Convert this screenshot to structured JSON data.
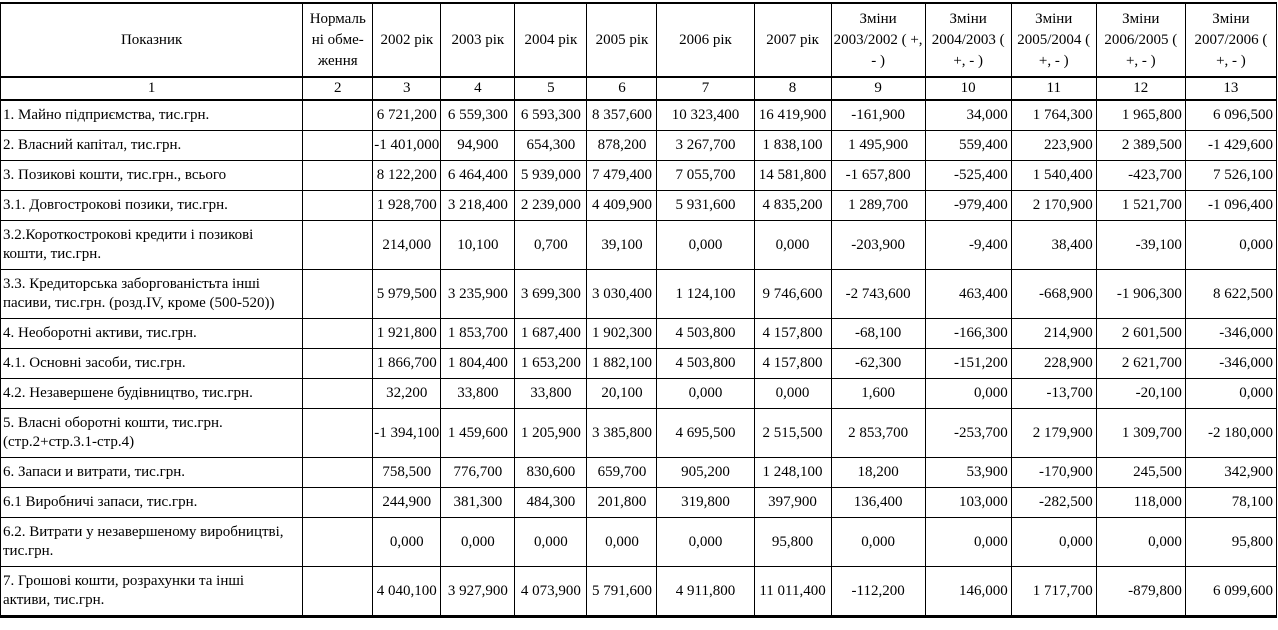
{
  "table": {
    "columns": [
      {
        "num": "1",
        "label": "Показник"
      },
      {
        "num": "2",
        "label": "Нормаль\nні обме-\nження"
      },
      {
        "num": "3",
        "label": "2002 рік"
      },
      {
        "num": "4",
        "label": "2003 рік"
      },
      {
        "num": "5",
        "label": "2004 рік"
      },
      {
        "num": "6",
        "label": "2005 рік"
      },
      {
        "num": "7",
        "label": "2006 рік"
      },
      {
        "num": "8",
        "label": "2007 рік"
      },
      {
        "num": "9",
        "label": "Зміни 2003/2002 ( +, - )"
      },
      {
        "num": "10",
        "label": "Зміни 2004/2003 ( +, - )"
      },
      {
        "num": "11",
        "label": "Зміни 2005/2004 ( +, - )"
      },
      {
        "num": "12",
        "label": "Зміни 2006/2005 ( +, - )"
      },
      {
        "num": "13",
        "label": "Зміни 2007/2006 ( +, - )"
      }
    ],
    "rows": [
      {
        "indicator": "1. Майно підприємства, тис.грн.",
        "norm": "",
        "values": [
          "6 721,200",
          "6 559,300",
          "6 593,300",
          "8 357,600",
          "10 323,400",
          "16 419,900",
          "-161,900",
          "34,000",
          "1 764,300",
          "1 965,800",
          "6 096,500"
        ]
      },
      {
        "indicator": "2. Власний капітал, тис.грн.",
        "norm": "",
        "values": [
          "-1 401,000",
          "94,900",
          "654,300",
          "878,200",
          "3 267,700",
          "1 838,100",
          "1 495,900",
          "559,400",
          "223,900",
          "2 389,500",
          "-1 429,600"
        ]
      },
      {
        "indicator": "3. Позикові кошти, тис.грн., всього",
        "norm": "",
        "values": [
          "8 122,200",
          "6 464,400",
          "5 939,000",
          "7 479,400",
          "7 055,700",
          "14 581,800",
          "-1 657,800",
          "-525,400",
          "1 540,400",
          "-423,700",
          "7 526,100"
        ]
      },
      {
        "indicator": "3.1. Довгострокові позики, тис.грн.",
        "norm": "",
        "values": [
          "1 928,700",
          "3 218,400",
          "2 239,000",
          "4 409,900",
          "5 931,600",
          "4 835,200",
          "1 289,700",
          "-979,400",
          "2 170,900",
          "1 521,700",
          "-1 096,400"
        ]
      },
      {
        "indicator": "3.2.Короткострокові кредити і позикові\nкошти, тис.грн.",
        "norm": "",
        "values": [
          "214,000",
          "10,100",
          "0,700",
          "39,100",
          "0,000",
          "0,000",
          "-203,900",
          "-9,400",
          "38,400",
          "-39,100",
          "0,000"
        ]
      },
      {
        "indicator": "3.3. Кредиторська заборгованістьта інші\nпасиви, тис.грн. (розд.IV, кроме (500-520))",
        "norm": "",
        "values": [
          "5 979,500",
          "3 235,900",
          "3 699,300",
          "3 030,400",
          "1 124,100",
          "9 746,600",
          "-2 743,600",
          "463,400",
          "-668,900",
          "-1 906,300",
          "8 622,500"
        ]
      },
      {
        "indicator": "4.  Необоротні активи, тис.грн.",
        "norm": "",
        "values": [
          "1 921,800",
          "1 853,700",
          "1 687,400",
          "1 902,300",
          "4 503,800",
          "4 157,800",
          "-68,100",
          "-166,300",
          "214,900",
          "2 601,500",
          "-346,000"
        ]
      },
      {
        "indicator": "4.1. Основні засоби, тис.грн.",
        "norm": "",
        "values": [
          "1 866,700",
          "1 804,400",
          "1 653,200",
          "1 882,100",
          "4 503,800",
          "4 157,800",
          "-62,300",
          "-151,200",
          "228,900",
          "2 621,700",
          "-346,000"
        ]
      },
      {
        "indicator": "4.2. Незавершене будівництво, тис.грн.",
        "norm": "",
        "values": [
          "32,200",
          "33,800",
          "33,800",
          "20,100",
          "0,000",
          "0,000",
          "1,600",
          "0,000",
          "-13,700",
          "-20,100",
          "0,000"
        ]
      },
      {
        "indicator": "5. Власні оборотні кошти, тис.грн.\n(стр.2+стр.3.1-стр.4)",
        "norm": "",
        "values": [
          "-1 394,100",
          "1 459,600",
          "1 205,900",
          "3 385,800",
          "4 695,500",
          "2 515,500",
          "2 853,700",
          "-253,700",
          "2 179,900",
          "1 309,700",
          "-2 180,000"
        ]
      },
      {
        "indicator": "6. Запаси и витрати, тис.грн.",
        "norm": "",
        "values": [
          "758,500",
          "776,700",
          "830,600",
          "659,700",
          "905,200",
          "1 248,100",
          "18,200",
          "53,900",
          "-170,900",
          "245,500",
          "342,900"
        ]
      },
      {
        "indicator": "6.1 Виробничі запаси, тис.грн.",
        "norm": "",
        "values": [
          "244,900",
          "381,300",
          "484,300",
          "201,800",
          "319,800",
          "397,900",
          "136,400",
          "103,000",
          "-282,500",
          "118,000",
          "78,100"
        ]
      },
      {
        "indicator": "6.2. Витрати у незавершеному виробництві,\nтис.грн.",
        "norm": "",
        "values": [
          "0,000",
          "0,000",
          "0,000",
          "0,000",
          "0,000",
          "95,800",
          "0,000",
          "0,000",
          "0,000",
          "0,000",
          "95,800"
        ]
      },
      {
        "indicator": "7. Грошові кошти, розрахунки та інші\nактиви, тис.грн.",
        "norm": "",
        "values": [
          "4 040,100",
          "3 927,900",
          "4 073,900",
          "5 791,600",
          "4 911,800",
          "11 011,400",
          "-112,200",
          "146,000",
          "1 717,700",
          "-879,800",
          "6 099,600"
        ]
      }
    ]
  }
}
